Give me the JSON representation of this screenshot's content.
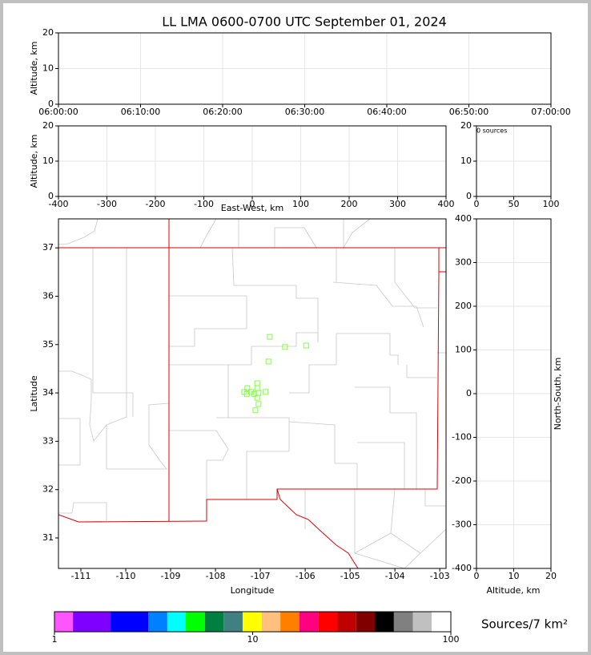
{
  "chart_data": [
    {
      "type": "scatter",
      "title": "LL LMA 0600-0700 UTC September 01, 2024",
      "ylabel": "Altitude, km",
      "x": [],
      "y": [],
      "xlim": [
        "06:00:00",
        "07:00:00"
      ],
      "xticks": [
        "06:00:00",
        "06:10:00",
        "06:20:00",
        "06:30:00",
        "06:40:00",
        "06:50:00",
        "07:00:00"
      ],
      "ylim": [
        0,
        20
      ],
      "yticks": [
        0,
        10,
        20
      ],
      "grid": true
    },
    {
      "type": "scatter",
      "xlabel": "East-West, km",
      "ylabel": "Altitude, km",
      "x": [],
      "y": [],
      "xlim": [
        -400,
        400
      ],
      "xticks": [
        -400,
        -300,
        -200,
        -100,
        0,
        100,
        200,
        300,
        400
      ],
      "ylim": [
        0,
        20
      ],
      "yticks": [
        0,
        10,
        20
      ],
      "grid": true
    },
    {
      "type": "histogram",
      "annotation": "0 sources",
      "xlim": [
        0,
        100
      ],
      "xticks": [
        0,
        50,
        100
      ],
      "ylim": [
        0,
        20
      ],
      "yticks": [
        0,
        10,
        20
      ],
      "grid": true
    },
    {
      "type": "scatter",
      "xlabel": "Longitude",
      "ylabel": "Latitude",
      "color": "#80ff40",
      "x": [
        -106.79,
        -106.45,
        -105.98,
        -106.82,
        -107.07,
        -107.07,
        -107.29,
        -107.36,
        -107.3,
        -107.21,
        -107.14,
        -107.04,
        -106.88,
        -107.07,
        -107.04,
        -107.11
      ],
      "y": [
        35.16,
        34.95,
        34.98,
        34.65,
        34.2,
        34.1,
        34.1,
        34.02,
        33.98,
        34.02,
        33.98,
        34.0,
        34.02,
        33.9,
        33.77,
        33.64
      ],
      "xlim": [
        -111.5,
        -102.86
      ],
      "xticks": [
        -111,
        -110,
        -109,
        -108,
        -107,
        -106,
        -105,
        -104,
        -103
      ],
      "ylim": [
        30.37,
        37.6
      ],
      "yticks": [
        31,
        32,
        33,
        34,
        35,
        36,
        37
      ],
      "grid": false
    },
    {
      "type": "scatter",
      "xlabel": "Altitude, km",
      "ylabel": "North-South, km",
      "x": [],
      "y": [],
      "xlim": [
        0,
        20
      ],
      "xticks": [
        0,
        10,
        20
      ],
      "ylim": [
        -400,
        400
      ],
      "yticks": [
        -400,
        -300,
        -200,
        -100,
        0,
        100,
        200,
        300,
        400
      ],
      "grid": true
    },
    {
      "type": "colorbar",
      "label": "Sources/7 km²",
      "log_scale": true,
      "xlim": [
        1,
        100
      ],
      "xticks": [
        1,
        10,
        100
      ],
      "bounds": [
        1,
        1.24,
        1.92,
        2.97,
        3.71,
        4.6,
        5.74,
        7.13,
        8.9,
        11.1,
        13.8,
        17.2,
        21.5,
        26.7,
        33.3,
        41.5,
        51.6,
        64.4,
        80.0,
        100
      ],
      "colors": [
        "#ff55ff",
        "#8000ff",
        "#0000ff",
        "#0080ff",
        "#00ffff",
        "#00ff00",
        "#008040",
        "#408080",
        "#ffff00",
        "#ffc080",
        "#ff8000",
        "#ff0080",
        "#ff0000",
        "#c00000",
        "#800000",
        "#000000",
        "#808080",
        "#c0c0c0",
        "#ffffff"
      ]
    }
  ]
}
